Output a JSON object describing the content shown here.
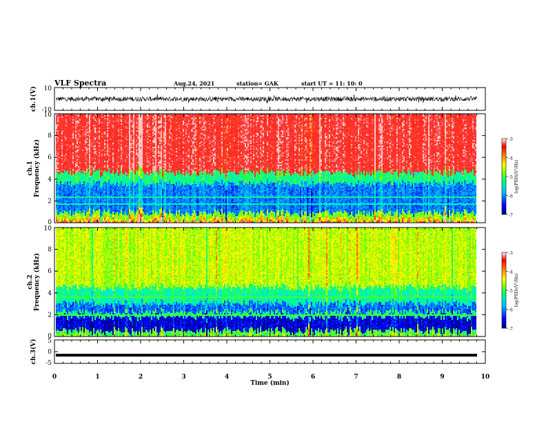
{
  "header": {
    "title": "VLF Spectra",
    "date": "Aug.24, 2021",
    "station": "station= GAK",
    "start": "start  UT =   11: 10: 0"
  },
  "colors": {
    "spectrum_stops": [
      "#00008c",
      "#0000ff",
      "#00c8ff",
      "#00ff80",
      "#80ff00",
      "#ffff00",
      "#ff8000",
      "#ff2020",
      "#ff4040"
    ],
    "trace": "#000000"
  },
  "chart_data": [
    {
      "type": "line",
      "name": "ch1-waveform",
      "ylabel": "ch.1(V)",
      "ylim": [
        -10,
        10
      ],
      "yticks": [
        "10",
        "-10"
      ],
      "xlim": [
        0,
        10
      ],
      "description_values": "noisy waveform, mean 0, amplitude approx ±3 V"
    },
    {
      "type": "heatmap",
      "name": "ch1-spectrogram",
      "ylabel": "ch.1\nFrequency (kHz)",
      "ylabel_line1": "ch.1",
      "ylabel_line2": "Frequency (kHz)",
      "ylim": [
        0,
        10
      ],
      "yticks": [
        "0",
        "2",
        "4",
        "6",
        "8",
        "10"
      ],
      "xlim": [
        0,
        10
      ],
      "colorbar": {
        "label": "log(PSD)(V²/Hz)",
        "range": [
          -7,
          -3
        ],
        "ticks": [
          "-3",
          "-4",
          "-5",
          "-6",
          "-7"
        ]
      },
      "bands": [
        {
          "from": 0,
          "to": 0.4,
          "level": -4.2
        },
        {
          "from": 0.4,
          "to": 0.9,
          "level": -4.8
        },
        {
          "from": 0.9,
          "to": 3.6,
          "level": -6.1
        },
        {
          "from": 3.6,
          "to": 4.6,
          "level": -5.2
        },
        {
          "from": 4.6,
          "to": 10,
          "level": -3.3
        }
      ]
    },
    {
      "type": "heatmap",
      "name": "ch2-spectrogram",
      "ylabel": "ch.2\nFrequency (kHz)",
      "ylabel_line1": "ch.2",
      "ylabel_line2": "Frequency (kHz)",
      "ylim": [
        0,
        10
      ],
      "yticks": [
        "0",
        "2",
        "4",
        "6",
        "8",
        "10"
      ],
      "xlim": [
        0,
        10
      ],
      "colorbar": {
        "label": "log(PSD)(V²/Hz)",
        "range": [
          -7,
          -3
        ],
        "ticks": [
          "-3",
          "-4",
          "-5",
          "-6",
          "-7"
        ]
      },
      "bands": [
        {
          "from": 0,
          "to": 0.5,
          "level": -5.0
        },
        {
          "from": 0.5,
          "to": 1.8,
          "level": -6.7
        },
        {
          "from": 1.8,
          "to": 2.2,
          "level": -5.2
        },
        {
          "from": 2.2,
          "to": 3.0,
          "level": -6.2
        },
        {
          "from": 3.0,
          "to": 4.5,
          "level": -5.3
        },
        {
          "from": 4.5,
          "to": 10,
          "level": -4.6
        }
      ]
    },
    {
      "type": "line",
      "name": "ch3-waveform",
      "ylabel": "ch.3(V)",
      "ylim": [
        -5,
        5
      ],
      "yticks": [
        "5",
        "0",
        "-5"
      ],
      "xlim": [
        0,
        10
      ],
      "level": -1.5
    }
  ],
  "xaxis": {
    "label": "Time (min)",
    "ticks": [
      "0",
      "1",
      "2",
      "3",
      "4",
      "5",
      "6",
      "7",
      "8",
      "9",
      "10"
    ]
  }
}
